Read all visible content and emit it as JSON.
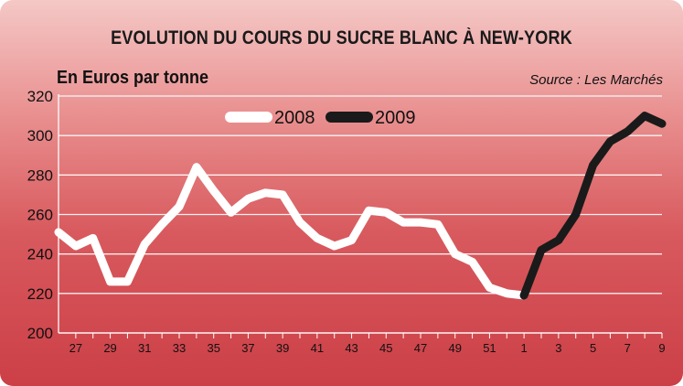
{
  "chart_data": {
    "type": "line",
    "title": "EVOLUTION DU COURS DU SUCRE BLANC À NEW-YORK",
    "ylabel": "En Euros par tonne",
    "source": "Source : Les Marchés",
    "ylim": [
      200,
      320
    ],
    "y_ticks": [
      "200",
      "220",
      "240",
      "260",
      "280",
      "300",
      "320"
    ],
    "x_tick_labels": [
      "27",
      "29",
      "31",
      "33",
      "35",
      "37",
      "39",
      "41",
      "43",
      "45",
      "47",
      "49",
      "51",
      "1",
      "3",
      "5",
      "7",
      "9"
    ],
    "x_tick_weeks": [
      27,
      29,
      31,
      33,
      35,
      37,
      39,
      41,
      43,
      45,
      47,
      49,
      51,
      53,
      55,
      57,
      59,
      61
    ],
    "x_range_weeks": [
      26,
      61
    ],
    "grid": true,
    "legend_position": "top-center",
    "series": [
      {
        "name": "2008",
        "color": "#ffffff",
        "x_weeks": [
          26,
          27,
          28,
          29,
          30,
          31,
          32,
          33,
          34,
          35,
          36,
          37,
          38,
          39,
          40,
          41,
          42,
          43,
          44,
          45,
          46,
          47,
          48,
          49,
          50,
          51,
          52,
          53
        ],
        "values": [
          251,
          244,
          248,
          226,
          226,
          245,
          255,
          264,
          284,
          272,
          261,
          268,
          271,
          270,
          256,
          248,
          244,
          247,
          262,
          261,
          256,
          256,
          255,
          240,
          236,
          223,
          220,
          219
        ]
      },
      {
        "name": "2009",
        "color": "#1a1a1a",
        "x_weeks": [
          53,
          54,
          55,
          56,
          57,
          58,
          59,
          60,
          61
        ],
        "values": [
          219,
          242,
          247,
          260,
          285,
          297,
          302,
          310,
          306
        ]
      }
    ]
  }
}
